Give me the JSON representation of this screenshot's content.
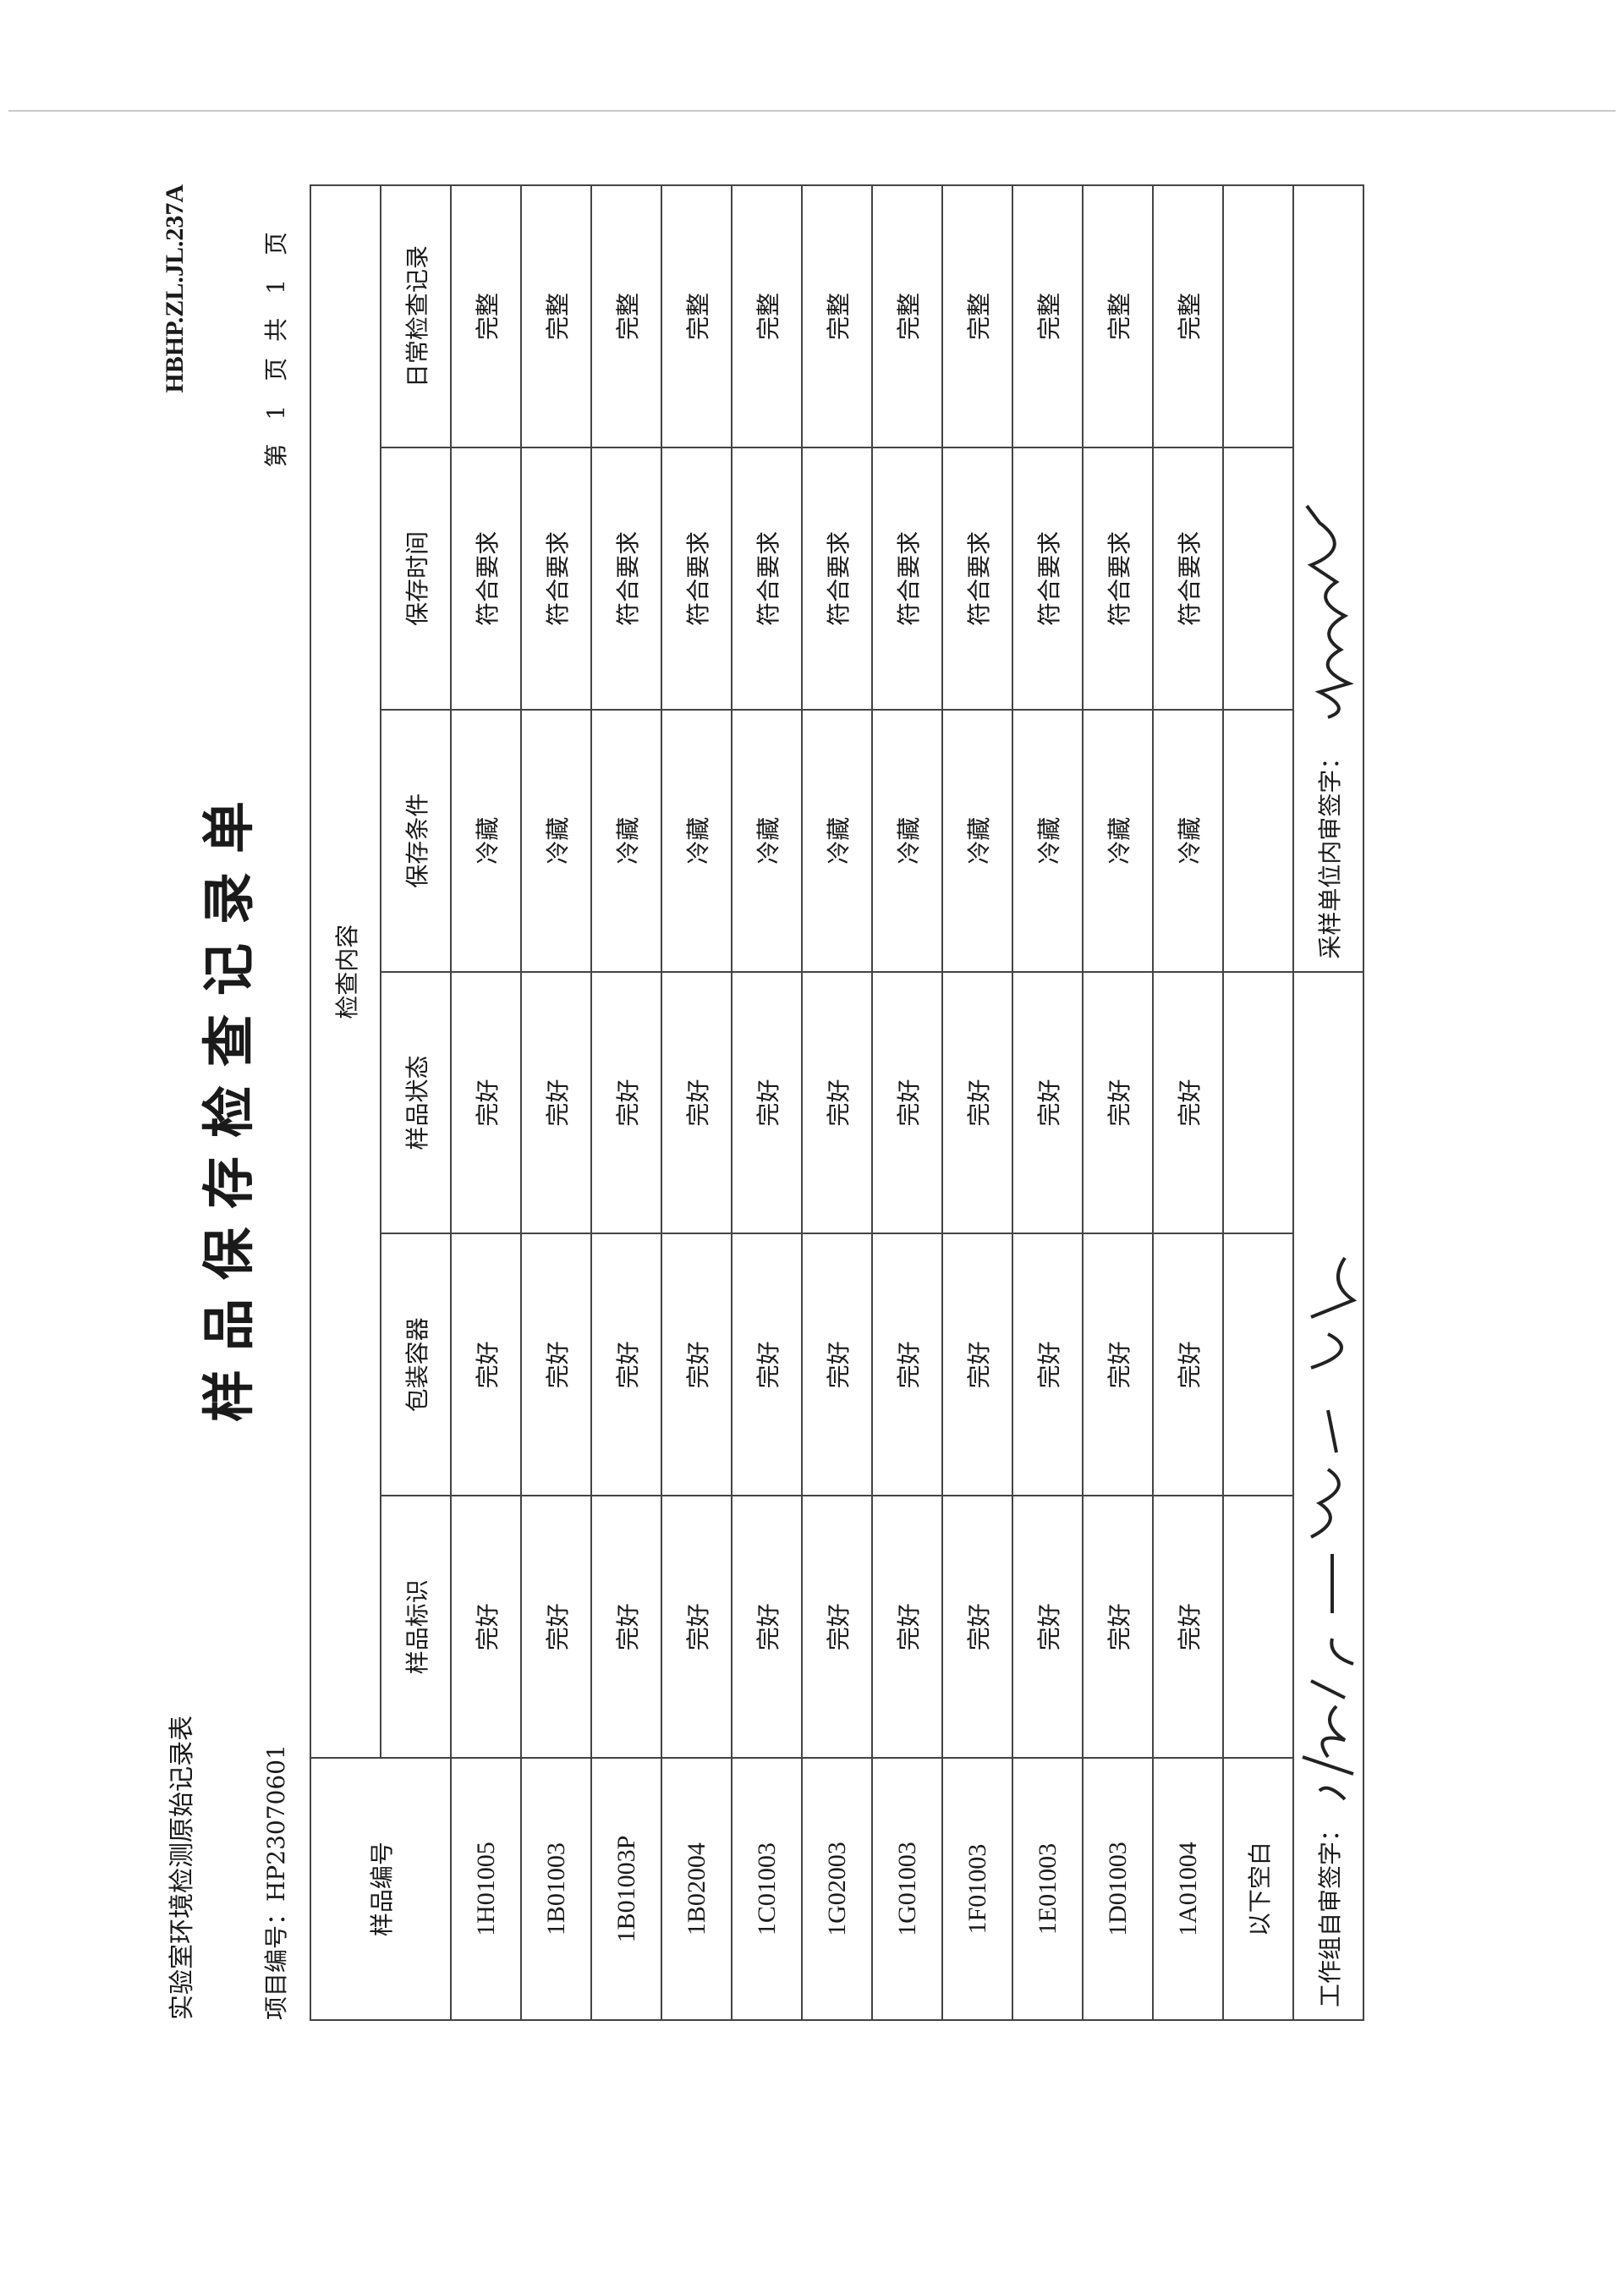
{
  "header": {
    "form_name": "实验室环境检测原始记录表",
    "form_code": "HBHP.ZL.JL.237A",
    "title": "样品保存检查记录单",
    "project_label": "项目编号：",
    "project_no": "HP23070601",
    "page_prefix": "第",
    "page_no": "1",
    "page_mid": "页 共",
    "page_total": "1",
    "page_suffix": "页"
  },
  "table": {
    "group_header": "检查内容",
    "columns": [
      "样品编号",
      "样品标识",
      "包装容器",
      "样品状态",
      "保存条件",
      "保存时间",
      "日常检查记录"
    ],
    "rows": [
      [
        "1H01005",
        "完好",
        "完好",
        "完好",
        "冷藏",
        "符合要求",
        "完整"
      ],
      [
        "1B01003",
        "完好",
        "完好",
        "完好",
        "冷藏",
        "符合要求",
        "完整"
      ],
      [
        "1B01003P",
        "完好",
        "完好",
        "完好",
        "冷藏",
        "符合要求",
        "完整"
      ],
      [
        "1B02004",
        "完好",
        "完好",
        "完好",
        "冷藏",
        "符合要求",
        "完整"
      ],
      [
        "1C01003",
        "完好",
        "完好",
        "完好",
        "冷藏",
        "符合要求",
        "完整"
      ],
      [
        "1G02003",
        "完好",
        "完好",
        "完好",
        "冷藏",
        "符合要求",
        "完整"
      ],
      [
        "1G01003",
        "完好",
        "完好",
        "完好",
        "冷藏",
        "符合要求",
        "完整"
      ],
      [
        "1F01003",
        "完好",
        "完好",
        "完好",
        "冷藏",
        "符合要求",
        "完整"
      ],
      [
        "1E01003",
        "完好",
        "完好",
        "完好",
        "冷藏",
        "符合要求",
        "完整"
      ],
      [
        "1D01003",
        "完好",
        "完好",
        "完好",
        "冷藏",
        "符合要求",
        "完整"
      ],
      [
        "1A01004",
        "完好",
        "完好",
        "完好",
        "冷藏",
        "符合要求",
        "完整"
      ]
    ],
    "blank_note": "以下空白"
  },
  "footer": {
    "team_sign_label": "工作组自审签字：",
    "unit_sign_label": "采样单位内审签字："
  }
}
